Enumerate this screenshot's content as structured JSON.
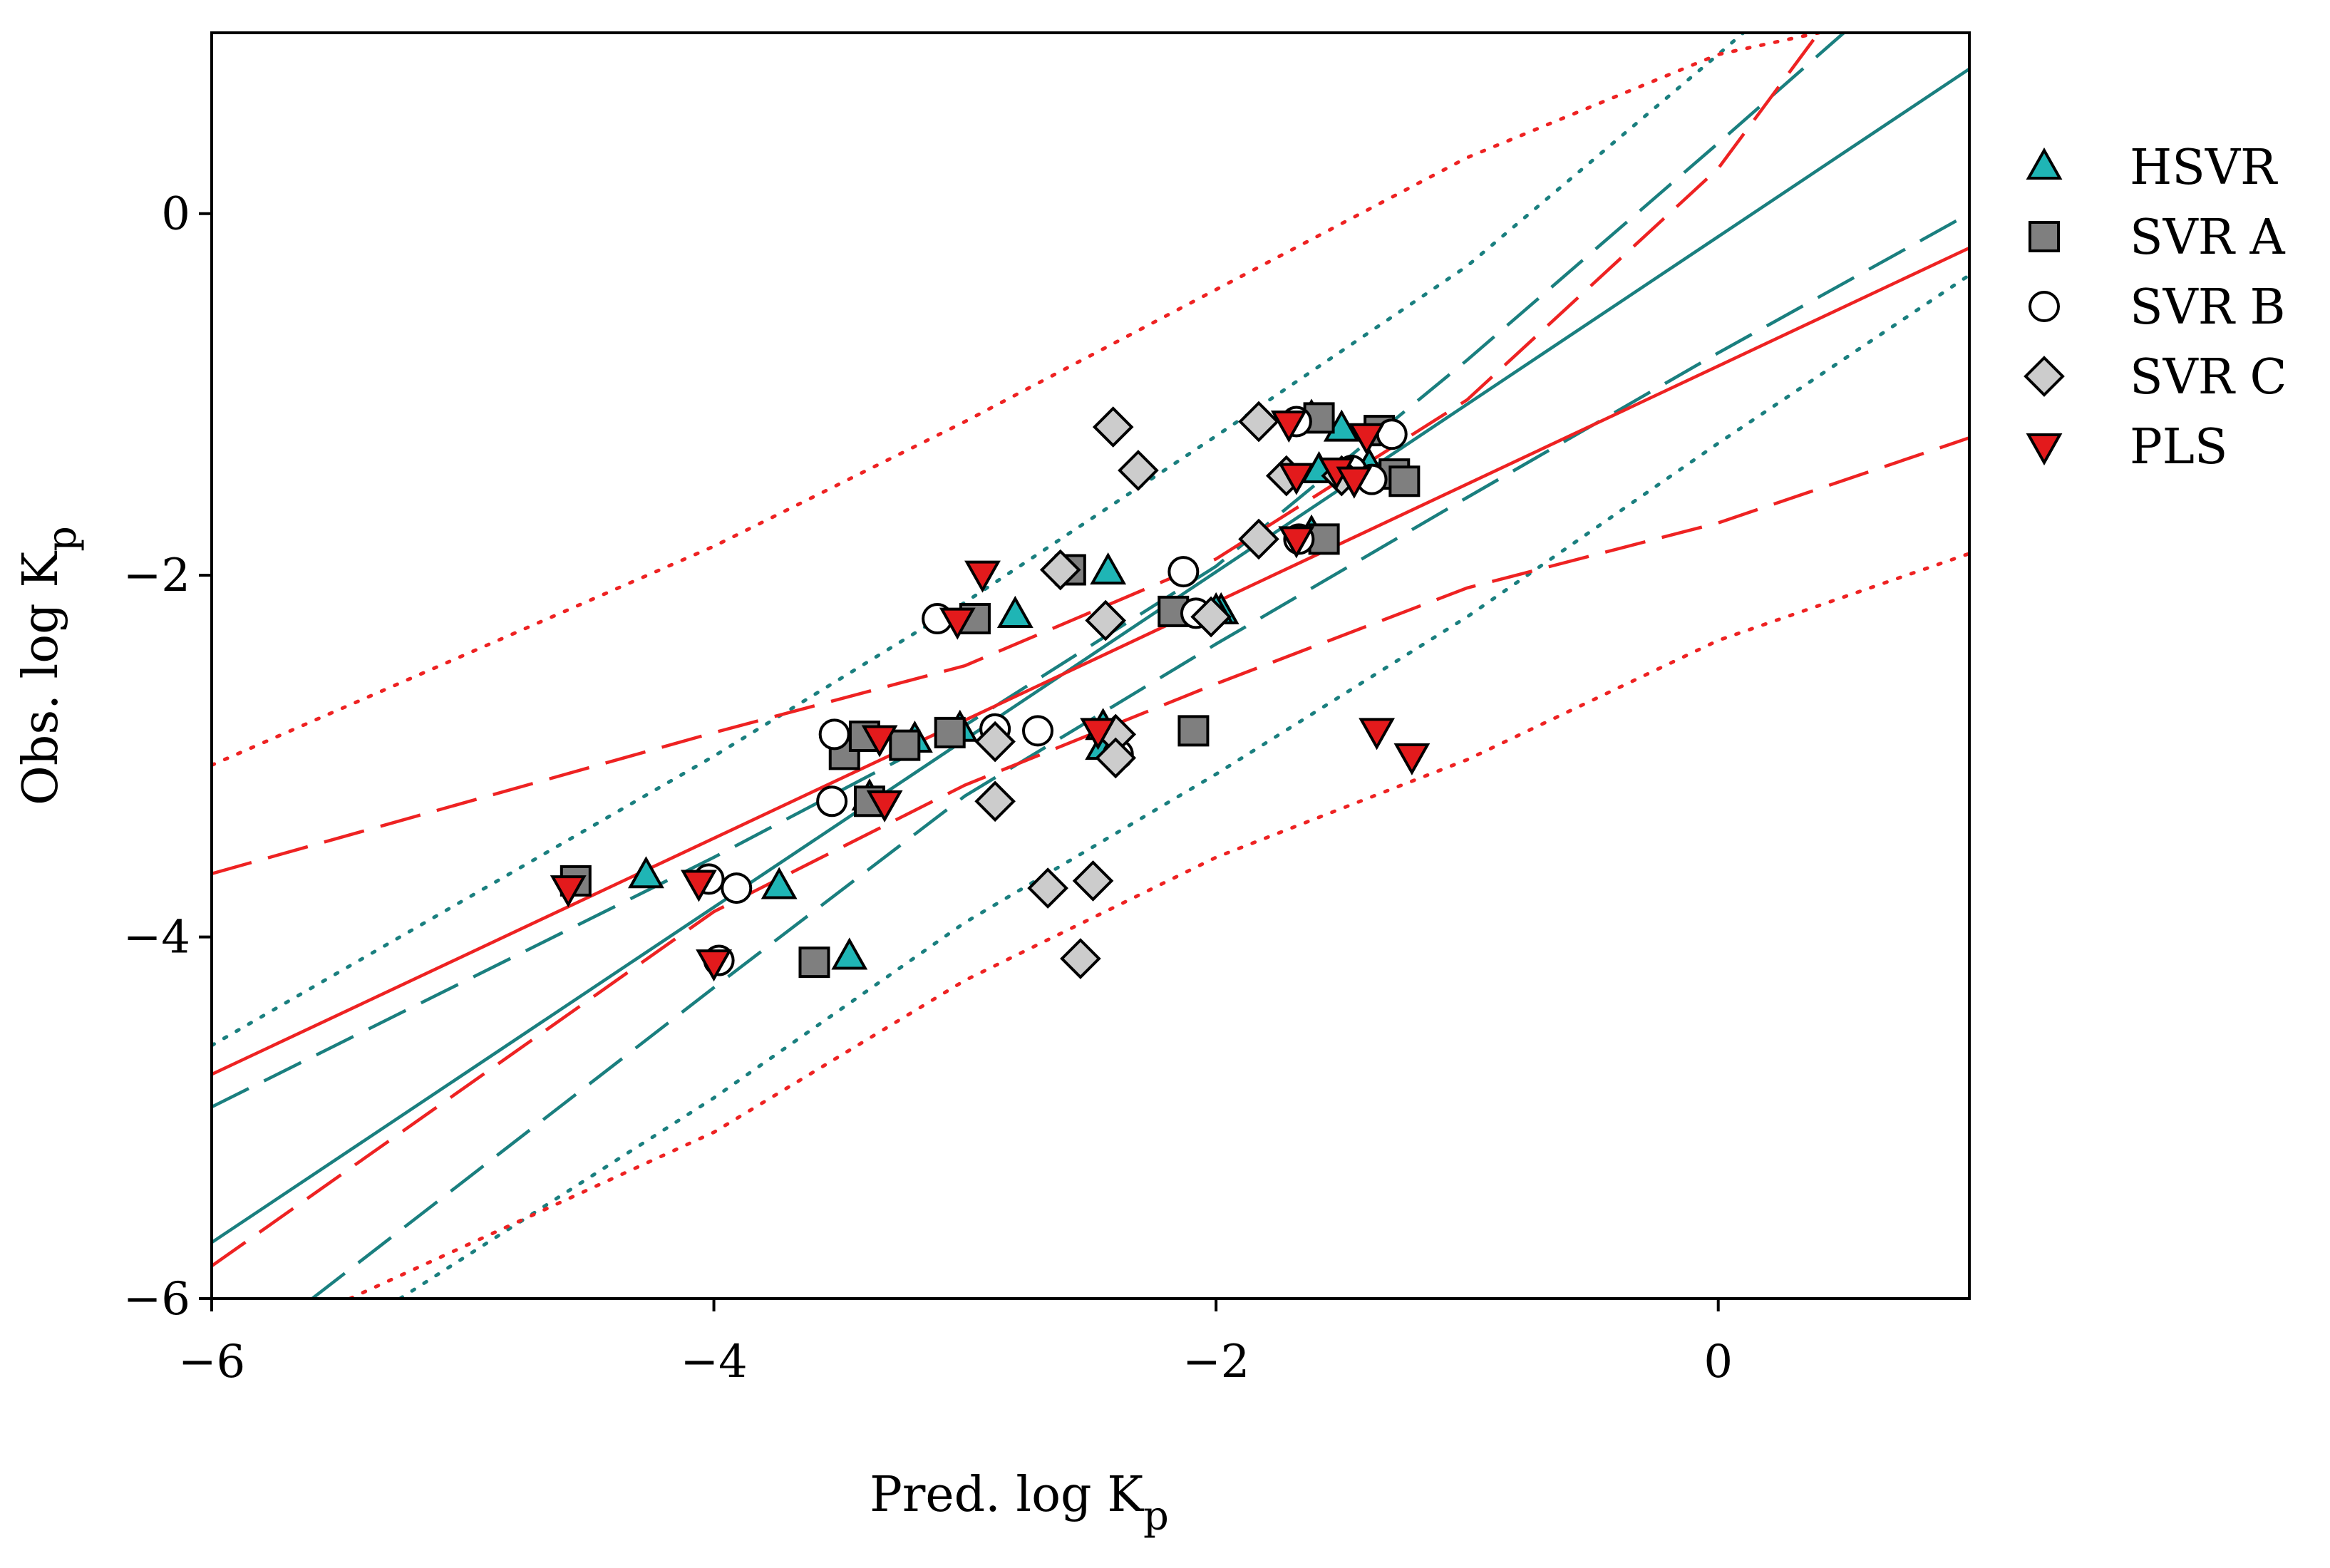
{
  "chart_data": {
    "type": "scatter",
    "title": "",
    "xlabel": "Pred. log K",
    "xlabel_sub": "p",
    "ylabel": "Obs. log K",
    "ylabel_sub": "p",
    "xlim": [
      -6,
      1
    ],
    "ylim": [
      -6,
      1
    ],
    "xticks": [
      -6,
      -4,
      -2,
      0
    ],
    "yticks": [
      -6,
      -4,
      -2,
      0
    ],
    "xtick_labels": [
      "−6",
      "−4",
      "−2",
      "0"
    ],
    "ytick_labels": [
      "−6",
      "−4",
      "−2",
      "0"
    ],
    "grid": false,
    "legend_position": "right",
    "colors": {
      "hsvr": "#1fb5b5",
      "svra": "#7f7f7f",
      "svrb": "#ffffff",
      "svrc": "#cccccc",
      "pls": "#e31a1c",
      "teal_line": "#1a7f7f",
      "red_line": "#ee2222"
    },
    "series": [
      {
        "name": "HSVR",
        "marker": "triangle-up",
        "color": "#1fb5b5",
        "points": [
          [
            -4.27,
            -3.66
          ],
          [
            -3.74,
            -3.72
          ],
          [
            -3.46,
            -4.11
          ],
          [
            -3.38,
            -3.23
          ],
          [
            -3.2,
            -2.91
          ],
          [
            -3.02,
            -2.85
          ],
          [
            -2.8,
            -2.22
          ],
          [
            -2.43,
            -1.98
          ],
          [
            -2.45,
            -2.95
          ],
          [
            -2.45,
            -2.84
          ],
          [
            -1.98,
            -2.2
          ],
          [
            -1.62,
            -1.13
          ],
          [
            -1.5,
            -1.19
          ],
          [
            -1.59,
            -1.42
          ],
          [
            -1.39,
            -1.4
          ],
          [
            -1.62,
            -1.77
          ],
          [
            -2.0,
            -2.2
          ]
        ]
      },
      {
        "name": "SVR A",
        "marker": "square",
        "color": "#7f7f7f",
        "points": [
          [
            -4.55,
            -3.69
          ],
          [
            -3.6,
            -4.14
          ],
          [
            -3.48,
            -2.99
          ],
          [
            -3.4,
            -2.89
          ],
          [
            -3.38,
            -3.25
          ],
          [
            -3.24,
            -2.94
          ],
          [
            -3.06,
            -2.87
          ],
          [
            -2.96,
            -2.24
          ],
          [
            -2.58,
            -1.97
          ],
          [
            -2.17,
            -2.2
          ],
          [
            -2.09,
            -2.86
          ],
          [
            -1.59,
            -1.13
          ],
          [
            -1.57,
            -1.8
          ],
          [
            -1.35,
            -1.2
          ],
          [
            -1.29,
            -1.44
          ],
          [
            -1.25,
            -1.48
          ]
        ]
      },
      {
        "name": "SVR B",
        "marker": "circle",
        "color": "#ffffff",
        "points": [
          [
            -4.02,
            -3.68
          ],
          [
            -3.98,
            -4.13
          ],
          [
            -3.91,
            -3.73
          ],
          [
            -3.53,
            -3.25
          ],
          [
            -3.52,
            -2.88
          ],
          [
            -3.11,
            -2.24
          ],
          [
            -2.88,
            -2.85
          ],
          [
            -2.71,
            -2.86
          ],
          [
            -2.39,
            -2.99
          ],
          [
            -2.13,
            -1.98
          ],
          [
            -2.08,
            -2.21
          ],
          [
            -1.68,
            -1.15
          ],
          [
            -1.46,
            -1.42
          ],
          [
            -1.3,
            -1.22
          ],
          [
            -1.38,
            -1.47
          ],
          [
            -1.67,
            -1.8
          ]
        ]
      },
      {
        "name": "SVR C",
        "marker": "diamond",
        "color": "#cccccc",
        "points": [
          [
            -2.41,
            -1.18
          ],
          [
            -2.31,
            -1.42
          ],
          [
            -2.62,
            -1.97
          ],
          [
            -2.44,
            -2.25
          ],
          [
            -2.4,
            -2.88
          ],
          [
            -2.4,
            -3.01
          ],
          [
            -2.88,
            -2.92
          ],
          [
            -2.88,
            -3.25
          ],
          [
            -2.67,
            -3.73
          ],
          [
            -2.49,
            -3.69
          ],
          [
            -2.54,
            -4.12
          ],
          [
            -1.83,
            -1.15
          ],
          [
            -1.72,
            -1.45
          ],
          [
            -1.83,
            -1.8
          ],
          [
            -2.02,
            -2.23
          ],
          [
            -1.5,
            -1.45
          ]
        ]
      },
      {
        "name": "PLS",
        "marker": "triangle-down",
        "color": "#e31a1c",
        "points": [
          [
            -4.58,
            -3.73
          ],
          [
            -4.06,
            -3.7
          ],
          [
            -4.0,
            -4.14
          ],
          [
            -3.32,
            -3.26
          ],
          [
            -3.34,
            -2.9
          ],
          [
            -3.03,
            -2.25
          ],
          [
            -2.93,
            -1.99
          ],
          [
            -2.47,
            -2.86
          ],
          [
            -1.71,
            -1.16
          ],
          [
            -1.68,
            -1.45
          ],
          [
            -1.52,
            -1.42
          ],
          [
            -1.4,
            -1.23
          ],
          [
            -1.68,
            -1.8
          ],
          [
            -1.36,
            -2.86
          ],
          [
            -1.22,
            -3.0
          ],
          [
            -1.45,
            -1.47
          ]
        ]
      }
    ],
    "regression_lines": [
      {
        "name": "HSVR fit",
        "style": "solid",
        "color": "#1a7f7f",
        "x": [
          -6,
          1
        ],
        "y": [
          -5.69,
          0.8
        ]
      },
      {
        "name": "HSVR confidence upper",
        "style": "dashed",
        "color": "#1a7f7f",
        "x": [
          -6,
          -4,
          -3,
          -2,
          -1,
          0,
          0.5
        ],
        "y": [
          -4.94,
          -3.56,
          -2.83,
          -1.95,
          -0.81,
          0.39,
          1.0
        ]
      },
      {
        "name": "HSVR confidence lower",
        "style": "dashed",
        "color": "#1a7f7f",
        "x": [
          -5.6,
          -4,
          -3,
          -2,
          -1,
          0,
          1
        ],
        "y": [
          -6.0,
          -4.28,
          -3.22,
          -2.38,
          -1.57,
          -0.77,
          0.0
        ]
      },
      {
        "name": "HSVR prediction upper",
        "style": "dotted",
        "color": "#1a7f7f",
        "x": [
          -6,
          -4,
          -3,
          -2,
          -1,
          0,
          0.1
        ],
        "y": [
          -4.6,
          -3.0,
          -2.15,
          -1.23,
          -0.29,
          0.88,
          1.0
        ]
      },
      {
        "name": "HSVR prediction lower",
        "style": "dotted",
        "color": "#1a7f7f",
        "x": [
          -5.25,
          -4,
          -3,
          -2,
          -1,
          0,
          1
        ],
        "y": [
          -6.0,
          -4.89,
          -3.92,
          -3.1,
          -2.23,
          -1.27,
          -0.34
        ]
      },
      {
        "name": "PLS fit",
        "style": "solid",
        "color": "#ee2222",
        "x": [
          -6,
          1
        ],
        "y": [
          -4.76,
          -0.19
        ]
      },
      {
        "name": "PLS confidence upper",
        "style": "dashed",
        "color": "#ee2222",
        "x": [
          -6,
          -4,
          -3,
          -2,
          -1,
          0,
          0.4
        ],
        "y": [
          -3.65,
          -2.87,
          -2.5,
          -1.91,
          -1.03,
          0.25,
          1.0
        ]
      },
      {
        "name": "PLS confidence lower",
        "style": "dashed",
        "color": "#ee2222",
        "x": [
          -6,
          -4,
          -3,
          -2,
          -1,
          0,
          1
        ],
        "y": [
          -5.82,
          -3.86,
          -3.16,
          -2.6,
          -2.07,
          -1.71,
          -1.24
        ]
      },
      {
        "name": "PLS prediction upper",
        "style": "dotted",
        "color": "#ee2222",
        "x": [
          -6,
          -4,
          -3,
          -2,
          -1,
          0,
          0.4
        ],
        "y": [
          -3.05,
          -1.84,
          -1.15,
          -0.42,
          0.31,
          0.88,
          1.0
        ]
      },
      {
        "name": "PLS prediction lower",
        "style": "dotted",
        "color": "#ee2222",
        "x": [
          -5.45,
          -4,
          -3,
          -2,
          -1,
          0,
          1
        ],
        "y": [
          -6.0,
          -5.08,
          -4.24,
          -3.56,
          -3.02,
          -2.36,
          -1.88
        ]
      }
    ]
  }
}
